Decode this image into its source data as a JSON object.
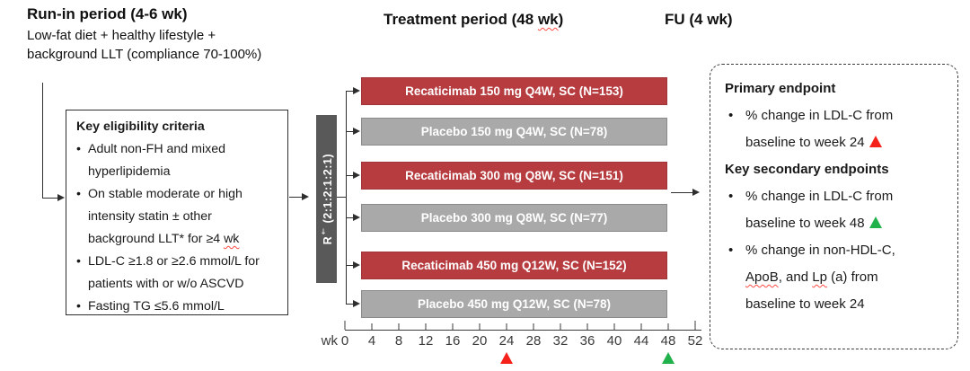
{
  "colors": {
    "drug_bar": "#B73C40",
    "drug_border": "#A13438",
    "placebo_bar": "#A9A9A9",
    "placebo_border": "#8A8A8A",
    "randomization_bar": "#595959",
    "marker_red": "#F5221B",
    "marker_green": "#21B14B",
    "squiggle": "#FF4A42"
  },
  "headers": {
    "run_in_title": "Run-in period (4-6 wk)",
    "run_in_sub_line1": "Low-fat diet + healthy lifestyle +",
    "run_in_sub_line2": "background LLT (compliance 70-100%)",
    "treatment_title_pre": "Treatment period (48 ",
    "treatment_title_squiggle": "wk",
    "treatment_title_post": ")",
    "fu_title": "FU (4 wk)"
  },
  "eligibility": {
    "title": "Key eligibility criteria",
    "b1l1": "Adult non-FH and mixed",
    "b1l2": "hyperlipidemia",
    "b2l1": "On stable moderate or high",
    "b2l2": "intensity statin ± other",
    "b2l3pre": "background LLT* for ≥4 ",
    "b2l3sq": "wk",
    "b3l1": "LDL-C ≥1.8 or ≥2.6 mmol/L for",
    "b3l2": "patients with or w/o ASCVD",
    "b4l1": "Fasting TG ≤5.6 mmol/L"
  },
  "randomization": {
    "label_r": "R",
    "label_sup": "†",
    "label_ratio": " (2:1:2:1:2:1)"
  },
  "arms": [
    {
      "label": "Recaticimab 150 mg Q4W, SC (N=153)",
      "type": "drug"
    },
    {
      "label": "Placebo 150 mg Q4W, SC (N=78)",
      "type": "placebo"
    },
    {
      "label": "Recaticimab 300 mg Q8W, SC (N=151)",
      "type": "drug"
    },
    {
      "label": "Placebo 300 mg Q8W, SC (N=77)",
      "type": "placebo"
    },
    {
      "label": "Recaticimab 450 mg Q12W, SC (N=152)",
      "type": "drug"
    },
    {
      "label": "Placebo 450 mg Q12W, SC (N=78)",
      "type": "placebo"
    }
  ],
  "axis": {
    "unit_label": "wk",
    "tick_min": 0,
    "tick_max": 52,
    "ticks": [
      0,
      4,
      8,
      12,
      16,
      20,
      24,
      28,
      32,
      36,
      40,
      44,
      48,
      52
    ],
    "primary_marker_week": 24,
    "secondary_marker_week": 48
  },
  "endpoints": {
    "primary_title": "Primary endpoint",
    "p1l1": "% change in LDL-C from",
    "p1l2": "baseline to week 24",
    "secondary_title": "Key secondary endpoints",
    "s1l1": "% change in LDL-C from",
    "s1l2": "baseline to week 48",
    "s2l1": "% change in non-HDL-C,",
    "s2l2sq1": "ApoB",
    "s2l2a": ", and ",
    "s2l2sq2": "Lp",
    "s2l2b": " (a) from",
    "s2l3": "baseline to week 24"
  }
}
